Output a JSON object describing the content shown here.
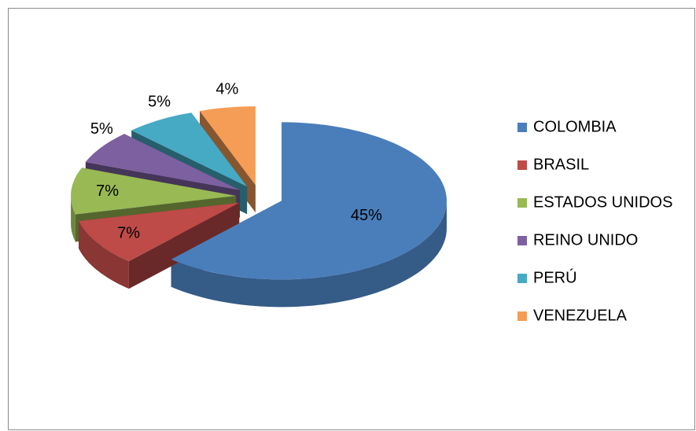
{
  "chart_data": {
    "type": "pie",
    "categories": [
      "COLOMBIA",
      "BRASIL",
      "ESTADOS UNIDOS",
      "REINO UNIDO",
      "PERÚ",
      "VENEZUELA"
    ],
    "values": [
      45,
      7,
      7,
      5,
      5,
      4
    ],
    "colors": [
      "#4a7ebb",
      "#be4b48",
      "#98b954",
      "#7d60a0",
      "#46aac5",
      "#f59d56"
    ],
    "legend": "right"
  }
}
